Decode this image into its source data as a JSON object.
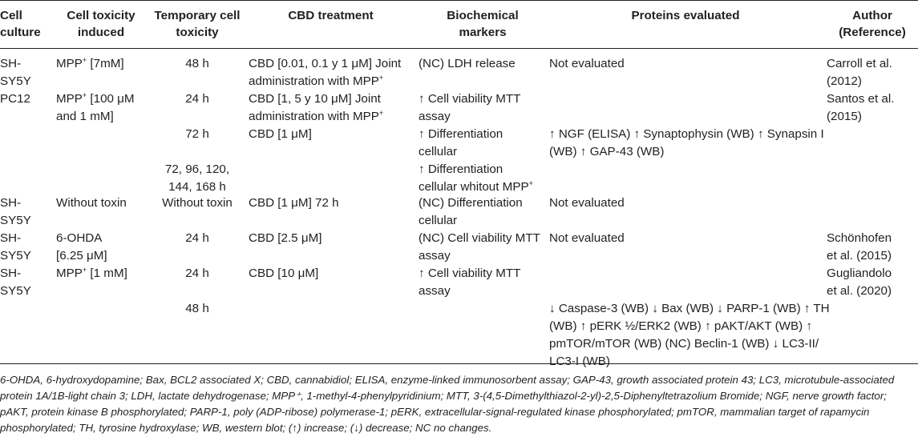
{
  "headers": {
    "cell_culture": [
      "Cell",
      "culture"
    ],
    "cell_toxicity_induced": [
      "Cell toxicity",
      "induced"
    ],
    "temporary_cell_toxicity": [
      "Temporary cell",
      "toxicity"
    ],
    "cbd_treatment": [
      "CBD treatment"
    ],
    "biochemical_markers": [
      "Biochemical",
      "markers"
    ],
    "proteins_evaluated": [
      "Proteins evaluated"
    ],
    "author": [
      "Author",
      "(Reference)"
    ]
  },
  "rows": [
    {
      "culture": [
        "SH-",
        "SY5Y"
      ],
      "toxicity": [
        "MPP⁺ [7mM]"
      ],
      "temporary": [
        "48 h"
      ],
      "cbd": [
        "CBD [0.01, 0.1 y 1 μM] Joint",
        "administration with MPP⁺"
      ],
      "markers": [
        "(NC) LDH release"
      ],
      "proteins": [
        "Not evaluated"
      ],
      "author": [
        "Carroll et al.",
        "(2012)"
      ]
    },
    {
      "culture": [
        "PC12"
      ],
      "toxicity": [
        "MPP⁺ [100 μM",
        "and 1 mM]"
      ],
      "temporary": [
        "24 h"
      ],
      "cbd": [
        "CBD [1, 5 y 10 μM] Joint",
        "administration with MPP⁺"
      ],
      "markers": [
        "↑ Cell viability MTT",
        "assay"
      ],
      "proteins": [],
      "author": [
        "Santos et al.",
        "(2015)"
      ]
    },
    {
      "culture": [],
      "toxicity": [],
      "temporary": [
        "72 h"
      ],
      "cbd": [
        "CBD [1 μM]"
      ],
      "markers": [
        "↑ Differentiation",
        "cellular"
      ],
      "proteins": [
        "↑ NGF (ELISA) ↑ Synaptophysin (WB) ↑ Synapsin I",
        "(WB) ↑ GAP-43 (WB)"
      ],
      "author": []
    },
    {
      "culture": [],
      "toxicity": [],
      "temporary": [
        "72, 96, 120,",
        "144, 168 h"
      ],
      "cbd": [],
      "markers": [
        "↑ Differentiation",
        "cellular whitout MPP⁺"
      ],
      "proteins": [],
      "author": []
    },
    {
      "culture": [
        "SH-",
        "SY5Y"
      ],
      "toxicity": [
        "Without toxin"
      ],
      "temporary": [
        "Without toxin"
      ],
      "cbd": [
        "CBD [1 μM] 72 h"
      ],
      "markers": [
        "(NC) Differentiation",
        "cellular"
      ],
      "proteins": [
        "Not evaluated"
      ],
      "author": []
    },
    {
      "culture": [
        "SH-",
        "SY5Y"
      ],
      "toxicity": [
        "6-OHDA",
        "[6.25 μM]"
      ],
      "temporary": [
        "24 h"
      ],
      "cbd": [
        "CBD [2.5 μM]"
      ],
      "markers": [
        "(NC) Cell viability MTT",
        "assay"
      ],
      "proteins": [
        "Not evaluated"
      ],
      "author": [
        "Schönhofen",
        "et al. (2015)"
      ]
    },
    {
      "culture": [
        "SH-",
        "SY5Y"
      ],
      "toxicity": [
        "MPP⁺ [1 mM]"
      ],
      "temporary": [
        "24 h"
      ],
      "cbd": [
        "CBD [10 μM]"
      ],
      "markers": [
        "↑ Cell viability MTT",
        "assay"
      ],
      "proteins": [],
      "author": [
        "Gugliandolo",
        "et al. (2020)"
      ]
    },
    {
      "culture": [],
      "toxicity": [],
      "temporary": [
        "48 h"
      ],
      "cbd": [],
      "markers": [],
      "proteins": [
        "↓ Caspase-3 (WB) ↓ Bax (WB) ↓ PARP-1 (WB) ↑ TH",
        "(WB) ↑ pERK ½/ERK2 (WB) ↑ pAKT/AKT (WB) ↑",
        "pmTOR/mTOR (WB) (NC) Beclin-1 (WB) ↓ LC3-II/",
        "LC3-I (WB)"
      ],
      "author": []
    }
  ],
  "footnote": "6-OHDA, 6-hydroxydopamine; Bax, BCL2 associated X; CBD, cannabidiol; ELISA, enzyme-linked immunosorbent assay; GAP-43, growth associated protein 43; LC3, microtubule-associated protein 1A/1B-light chain 3; LDH, lactate dehydrogenase; MPP⁺, 1-methyl-4-phenylpyridinium; MTT, 3-(4,5-Dimethylthiazol-2-yl)-2,5-Diphenyltetrazolium Bromide; NGF, nerve growth factor; pAKT, protein kinase B phosphorylated; PARP-1, poly (ADP-ribose) polymerase-1; pERK, extracellular-signal-regulated kinase phosphorylated; pmTOR, mammalian target of rapamycin phosphorylated; TH, tyrosine hydroxylase; WB, western blot; (↑) increase; (↓) decrease; NC no changes."
}
